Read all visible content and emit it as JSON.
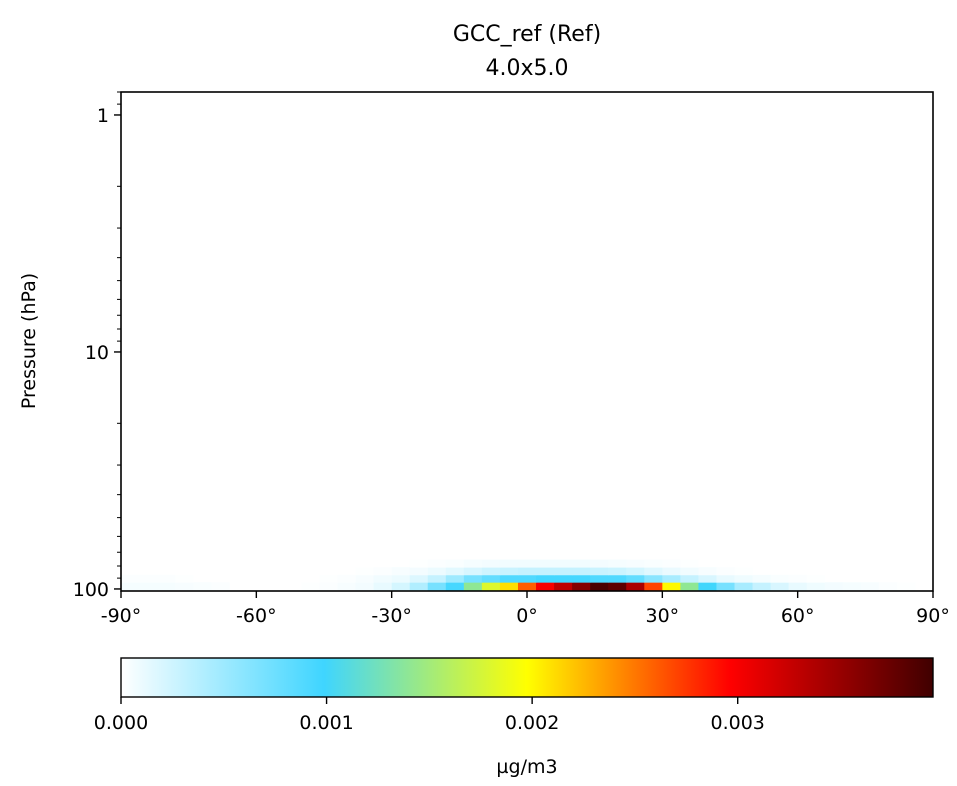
{
  "chart_data": {
    "type": "heatmap",
    "title": "GCC_ref (Ref)",
    "subtitle": "4.0x5.0",
    "xlabel": "",
    "ylabel": "Pressure (hPa)",
    "x_axis": {
      "range": [
        -90,
        90
      ],
      "ticks": [
        -90,
        -60,
        -30,
        0,
        30,
        60,
        90
      ],
      "tick_labels": [
        "-90°",
        "-60°",
        "-30°",
        "0°",
        "30°",
        "60°",
        "90°"
      ]
    },
    "y_axis": {
      "scale": "log",
      "inverted": true,
      "range": [
        102,
        0.8
      ],
      "ticks": [
        1,
        10,
        100
      ],
      "tick_labels": [
        "1",
        "10",
        "100"
      ]
    },
    "x": [
      -88,
      -84,
      -80,
      -76,
      -72,
      -68,
      -64,
      -60,
      -56,
      -52,
      -48,
      -44,
      -40,
      -36,
      -32,
      -28,
      -24,
      -20,
      -16,
      -12,
      -8,
      -4,
      0,
      4,
      8,
      12,
      16,
      20,
      24,
      28,
      32,
      36,
      40,
      44,
      48,
      52,
      56,
      60,
      64,
      68,
      72,
      76,
      80,
      84,
      88
    ],
    "pressure_levels_hPa": [
      97,
      90.5,
      84,
      78
    ],
    "values_ugm3": [
      [
        5e-05,
        5e-05,
        5e-05,
        4e-05,
        3e-05,
        2e-05,
        0,
        0,
        0,
        0,
        1e-05,
        2e-05,
        4e-05,
        6e-05,
        0.00012,
        0.00022,
        0.0004,
        0.0007,
        0.00095,
        0.0014,
        0.0018,
        0.0021,
        0.0026,
        0.003,
        0.0033,
        0.0036,
        0.0039,
        0.0038,
        0.0034,
        0.0027,
        0.002,
        0.0014,
        0.001,
        0.0007,
        0.00045,
        0.0003,
        0.0002,
        0.00012,
        8e-05,
        6e-05,
        5e-05,
        4e-05,
        2e-05,
        1e-05,
        0
      ],
      [
        2e-05,
        2e-05,
        2e-05,
        1e-05,
        0,
        0,
        0,
        0,
        0,
        0,
        0,
        1e-05,
        2e-05,
        4e-05,
        7e-05,
        0.0001,
        0.00018,
        0.0003,
        0.0005,
        0.0007,
        0.0008,
        0.0009,
        0.0009,
        0.00095,
        0.00095,
        0.00095,
        0.0009,
        0.0009,
        0.0008,
        0.0006,
        0.00045,
        0.0003,
        0.0002,
        0.00012,
        8e-05,
        5e-05,
        3e-05,
        2e-05,
        1e-05,
        0,
        0,
        0,
        0,
        0,
        0
      ],
      [
        0,
        0,
        0,
        0,
        0,
        0,
        0,
        0,
        0,
        0,
        0,
        0,
        0,
        1e-05,
        2e-05,
        4e-05,
        6e-05,
        0.0001,
        0.00015,
        0.0002,
        0.00025,
        0.00028,
        0.0003,
        0.0003,
        0.0003,
        0.0003,
        0.00028,
        0.00026,
        0.00022,
        0.00016,
        0.00011,
        7e-05,
        4e-05,
        2e-05,
        1e-05,
        0,
        0,
        0,
        0,
        0,
        0,
        0,
        0,
        0,
        0
      ],
      [
        0,
        0,
        0,
        0,
        0,
        0,
        0,
        0,
        0,
        0,
        0,
        0,
        0,
        0,
        0,
        0,
        1e-05,
        2e-05,
        3e-05,
        5e-05,
        6e-05,
        7e-05,
        7e-05,
        7e-05,
        7e-05,
        7e-05,
        6e-05,
        5e-05,
        4e-05,
        3e-05,
        2e-05,
        1e-05,
        0,
        0,
        0,
        0,
        0,
        0,
        0,
        0,
        0,
        0,
        0,
        0,
        0
      ]
    ],
    "colorbar": {
      "range": [
        0,
        0.00395
      ],
      "ticks": [
        0.0,
        0.001,
        0.002,
        0.003
      ],
      "tick_labels": [
        "0.000",
        "0.001",
        "0.002",
        "0.003"
      ],
      "label": "µg/m3",
      "colormap": [
        "#ffffff",
        "#3fd5ff",
        "#ffff00",
        "#ff0000",
        "#400000"
      ]
    },
    "grid": false
  }
}
